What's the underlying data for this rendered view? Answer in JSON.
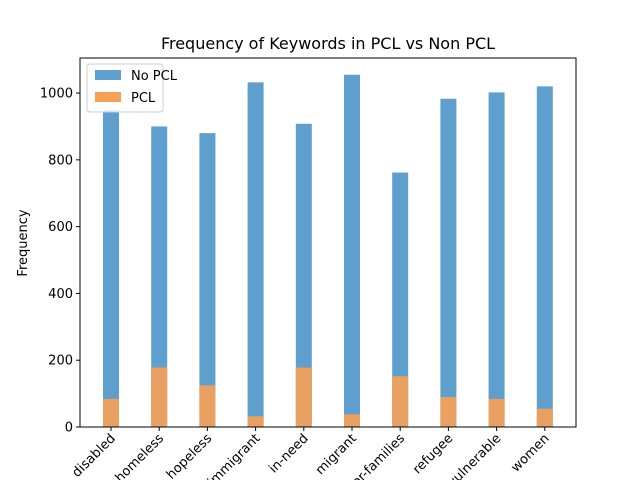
{
  "chart_data": {
    "type": "bar",
    "title": "Frequency of Keywords in PCL vs Non PCL",
    "xlabel": "",
    "ylabel": "Frequency",
    "categories": [
      "disabled",
      "homeless",
      "hopeless",
      "immigrant",
      "in-need",
      "migrant",
      "poor-families",
      "refugee",
      "vulnerable",
      "women"
    ],
    "series": [
      {
        "name": "No PCL",
        "color": "#5f9fcd",
        "values": [
          950,
          900,
          880,
          1032,
          908,
          1055,
          762,
          983,
          1002,
          1020
        ]
      },
      {
        "name": "PCL",
        "color": "#f5a057",
        "values": [
          84,
          178,
          125,
          32,
          178,
          38,
          152,
          90,
          84,
          55
        ]
      }
    ],
    "ylim": [
      0,
      1105
    ],
    "yticks": [
      0,
      200,
      400,
      600,
      800,
      1000
    ],
    "grid": false,
    "legend_position": "top-left"
  }
}
